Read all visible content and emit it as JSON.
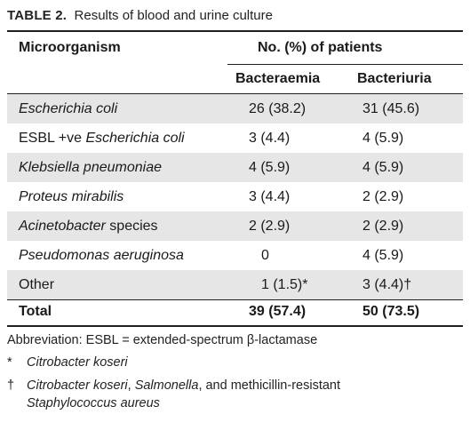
{
  "caption": {
    "label": "TABLE 2.",
    "text": "Results of blood and urine culture"
  },
  "header": {
    "col1": "Microorganism",
    "group": "No. (%) of patients",
    "col2": "Bacteraemia",
    "col3": "Bacteriuria"
  },
  "rows": [
    {
      "pre": "",
      "org": "Escherichia coli",
      "post": "",
      "b": "26 (38.2)",
      "u": "31 (45.6)"
    },
    {
      "pre": "ESBL +ve ",
      "org": "Escherichia coli",
      "post": "",
      "b": "3 (4.4)",
      "u": "4 (5.9)"
    },
    {
      "pre": "",
      "org": "Klebsiella pneumoniae",
      "post": "",
      "b": "4 (5.9)",
      "u": "4 (5.9)"
    },
    {
      "pre": "",
      "org": "Proteus mirabilis",
      "post": "",
      "b": "3 (4.4)",
      "u": "2 (2.9)"
    },
    {
      "pre": "",
      "org": "Acinetobacter",
      "post": " species",
      "b": "2 (2.9)",
      "u": "2 (2.9)"
    },
    {
      "pre": "",
      "org": "Pseudomonas aeruginosa",
      "post": "",
      "b": "0",
      "u": "4 (5.9)"
    },
    {
      "pre": "Other",
      "org": "",
      "post": "",
      "b": "1 (1.5)*",
      "u": "3 (4.4)†"
    }
  ],
  "total": {
    "label": "Total",
    "b": "39 (57.4)",
    "u": "50 (73.5)"
  },
  "footnotes": {
    "abbreviation": "Abbreviation: ESBL = extended-spectrum β-lactamase",
    "star_symbol": "*",
    "star_text": "Citrobacter koseri",
    "dagger_symbol": "†",
    "dagger_it1": "Citrobacter koseri",
    "dagger_sep1": ", ",
    "dagger_it2": "Salmonella",
    "dagger_rest": ", and methicillin-resistant",
    "dagger_it3": "Staphylococcus aureus"
  },
  "colors": {
    "row_shade": "#e7e6e6",
    "rule": "#1f1f1f"
  }
}
